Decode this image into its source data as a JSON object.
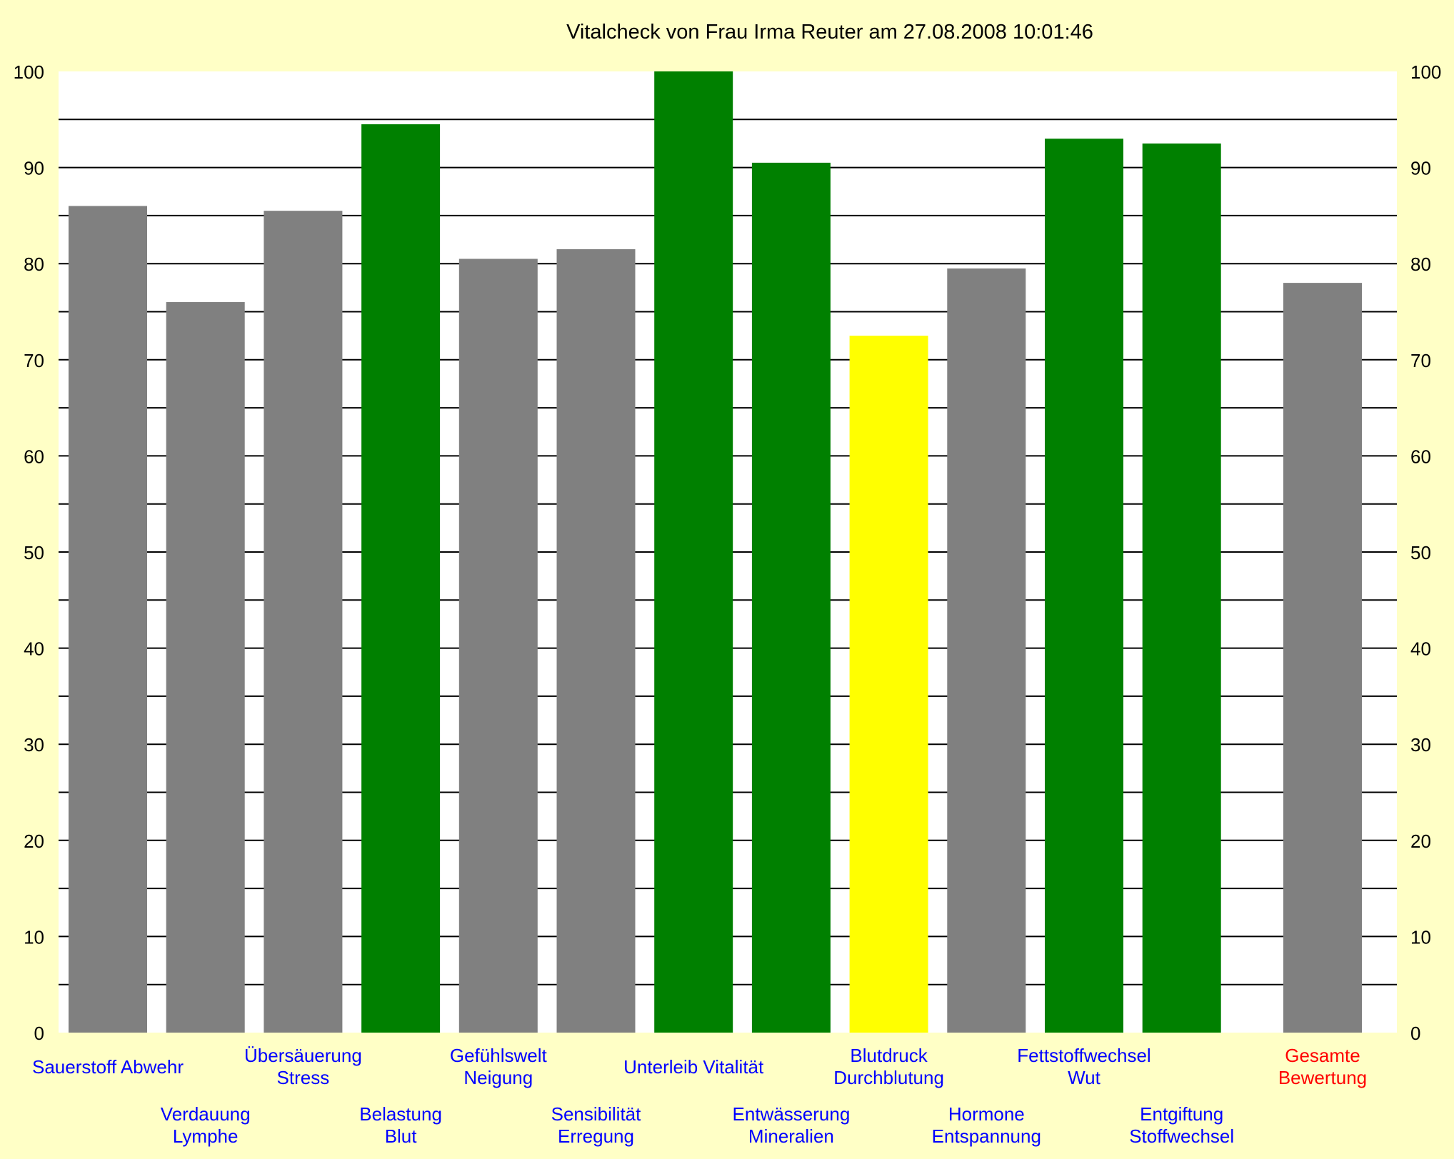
{
  "chart_data": {
    "type": "bar",
    "title": "Vitalcheck von Frau Irma Reuter am 27.08.2008 10:01:46",
    "ylim": [
      0,
      100
    ],
    "y_ticks": [
      "0",
      "10",
      "20",
      "30",
      "40",
      "50",
      "60",
      "70",
      "80",
      "90",
      "100"
    ],
    "grid": true,
    "colors": {
      "background": "#ffffc6",
      "plot": "#ffffff",
      "gray": "#808080",
      "green": "#008000",
      "yellow": "#ffff00",
      "label_blue": "#0000ff",
      "label_red": "#ff0000"
    },
    "categories": [
      {
        "lines": [
          "Sauerstoff Abwehr"
        ],
        "value": 86,
        "color": "gray",
        "label_color": "label_blue"
      },
      {
        "lines": [
          "Verdauung",
          "Lymphe"
        ],
        "value": 76,
        "color": "gray",
        "label_color": "label_blue"
      },
      {
        "lines": [
          "Übersäuerung",
          "Stress"
        ],
        "value": 85.5,
        "color": "gray",
        "label_color": "label_blue"
      },
      {
        "lines": [
          "Belastung",
          "Blut"
        ],
        "value": 94.5,
        "color": "green",
        "label_color": "label_blue"
      },
      {
        "lines": [
          "Gefühlswelt",
          "Neigung"
        ],
        "value": 80.5,
        "color": "gray",
        "label_color": "label_blue"
      },
      {
        "lines": [
          "Sensibilität",
          "Erregung"
        ],
        "value": 81.5,
        "color": "gray",
        "label_color": "label_blue"
      },
      {
        "lines": [
          "Unterleib Vitalität"
        ],
        "value": 100,
        "color": "green",
        "label_color": "label_blue"
      },
      {
        "lines": [
          "Entwässerung",
          "Mineralien"
        ],
        "value": 90.5,
        "color": "green",
        "label_color": "label_blue"
      },
      {
        "lines": [
          "Blutdruck",
          "Durchblutung"
        ],
        "value": 72.5,
        "color": "yellow",
        "label_color": "label_blue"
      },
      {
        "lines": [
          "Hormone",
          "Entspannung"
        ],
        "value": 79.5,
        "color": "gray",
        "label_color": "label_blue"
      },
      {
        "lines": [
          "Fettstoffwechsel",
          "Wut"
        ],
        "value": 93,
        "color": "green",
        "label_color": "label_blue"
      },
      {
        "lines": [
          "Entgiftung",
          "Stoffwechsel"
        ],
        "value": 92.5,
        "color": "green",
        "label_color": "label_blue"
      },
      {
        "lines": [
          "Gesamte",
          "Bewertung"
        ],
        "value": 78,
        "color": "gray",
        "label_color": "label_red"
      }
    ]
  }
}
